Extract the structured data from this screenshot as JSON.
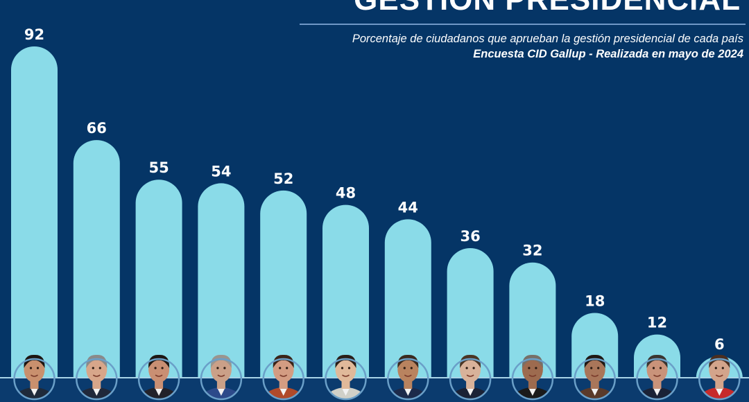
{
  "header": {
    "title": "GESTIÓN PRESIDENCIAL",
    "subtitle": "Porcentaje de ciudadanos que aprueban la gestión presidencial de cada país",
    "source": "Encuesta CID Gallup - Realizada en mayo de 2024"
  },
  "colors": {
    "background": "#053566",
    "bar": "#8adbe8",
    "label": "#ffffff",
    "baseline": "#a8d4e8",
    "portrait_ring": "#6a9fc8"
  },
  "chart_data": {
    "type": "bar",
    "title": "GESTIÓN PRESIDENCIAL",
    "subtitle": "Porcentaje de ciudadanos que aprueban la gestión presidencial de cada país",
    "source": "Encuesta CID Gallup - Realizada en mayo de 2024",
    "xlabel": "",
    "ylabel": "",
    "ylim": [
      0,
      100
    ],
    "grid": false,
    "legend": "none",
    "categories": [
      "1",
      "2",
      "3",
      "4",
      "5",
      "6",
      "7",
      "8",
      "9",
      "10",
      "11",
      "12"
    ],
    "category_display": "portrait photo of each president",
    "values": [
      92,
      66,
      55,
      54,
      52,
      48,
      44,
      36,
      32,
      18,
      12,
      6
    ],
    "data_labels": [
      "92",
      "66",
      "55",
      "54",
      "52",
      "48",
      "44",
      "36",
      "32",
      "18",
      "12",
      "6"
    ]
  }
}
